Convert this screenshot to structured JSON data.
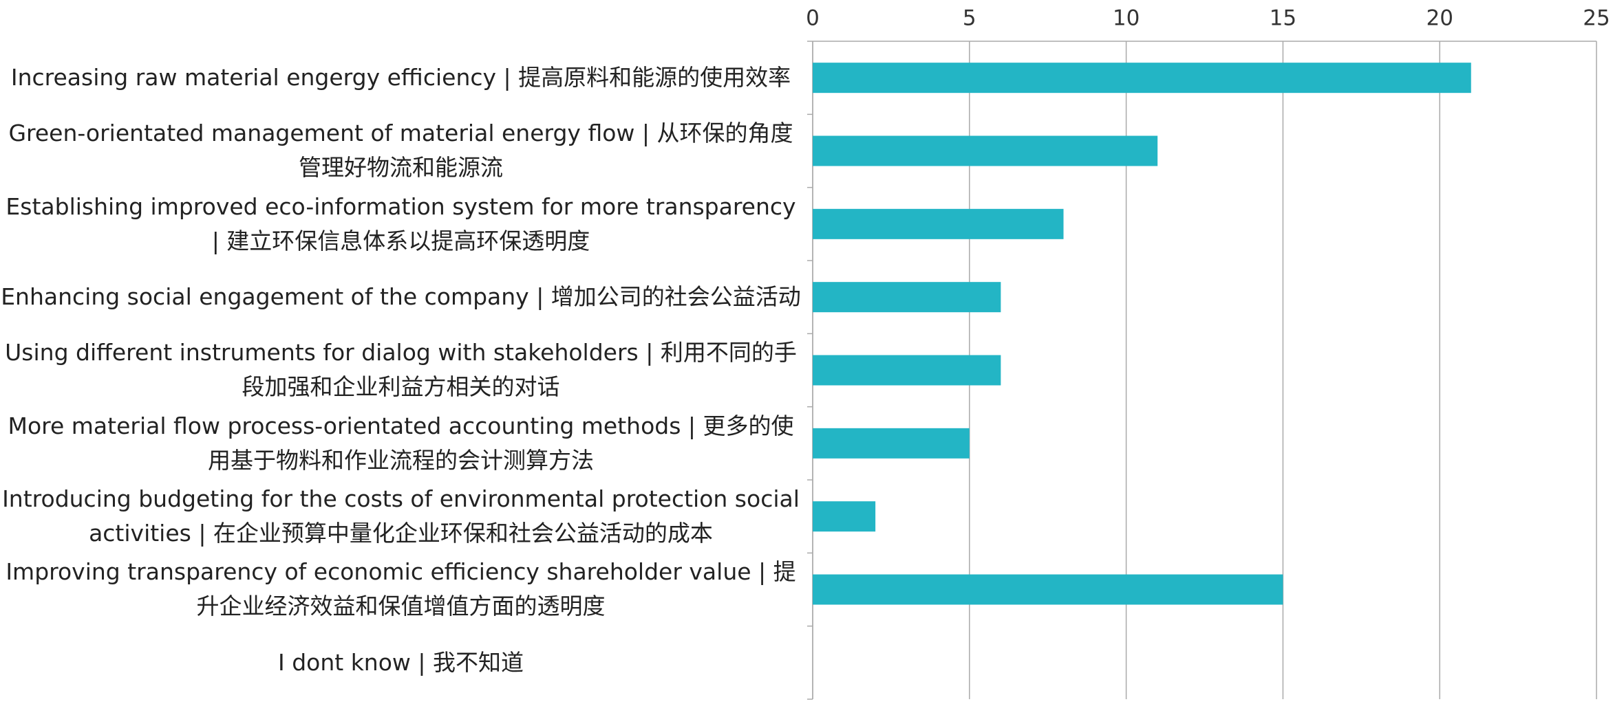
{
  "chart_data": {
    "type": "bar",
    "orientation": "horizontal",
    "categories": [
      "Increasing raw material  engergy efficiency | 提高原料和能源的使用效率",
      "Green-orientated management of material  energy flow | 从环保的角度管理好物流和能源流",
      "Establishing improved eco-information system for more transparency | 建立环保信息体系以提高环保透明度",
      "Enhancing social engagement of the company | 增加公司的社会公益活动",
      "Using different instruments for dialog with stakeholders | 利用不同的手段加强和企业利益方相关的对话",
      "More material flow  process-orientated accounting methods | 更多的使用基于物料和作业流程的会计测算方法",
      "Introducing budgeting for the costs of environmental protection  social activities | 在企业预算中量化企业环保和社会公益活动的成本",
      "Improving transparency of economic efficiency  shareholder value | 提升企业经济效益和保值增值方面的透明度",
      "I dont know | 我不知道"
    ],
    "values": [
      21,
      11,
      8,
      6,
      6,
      5,
      2,
      15,
      0
    ],
    "color": "#23b5c5",
    "xlim": [
      0,
      25
    ],
    "xticks": [
      0,
      5,
      10,
      15,
      20,
      25
    ],
    "grid": true
  }
}
